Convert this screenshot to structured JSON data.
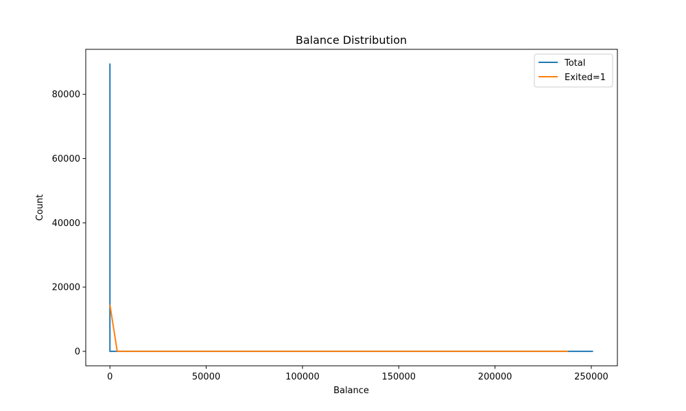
{
  "chart_data": {
    "type": "line",
    "title": "Balance Distribution",
    "xlabel": "Balance",
    "ylabel": "Count",
    "xlim": [
      -12550,
      263550
    ],
    "ylim": [
      -4500,
      94000
    ],
    "xticks": [
      0,
      50000,
      100000,
      150000,
      200000,
      250000
    ],
    "xtick_labels": [
      "0",
      "50000",
      "100000",
      "150000",
      "200000",
      "250000"
    ],
    "yticks": [
      0,
      20000,
      40000,
      60000,
      80000
    ],
    "ytick_labels": [
      "0",
      "20000",
      "40000",
      "60000",
      "80000"
    ],
    "grid": false,
    "legend_position": "upper right",
    "series": [
      {
        "name": "Total",
        "color": "#1f77b4",
        "x": [
          0,
          0,
          500,
          50000,
          100000,
          150000,
          200000,
          250898
        ],
        "y": [
          89600,
          0,
          0,
          0,
          0,
          0,
          0,
          0
        ]
      },
      {
        "name": "Exited=1",
        "color": "#ff7f0e",
        "x": [
          0,
          3800,
          50000,
          100000,
          150000,
          200000,
          238000
        ],
        "y": [
          14500,
          0,
          0,
          0,
          0,
          0,
          0
        ]
      }
    ]
  }
}
